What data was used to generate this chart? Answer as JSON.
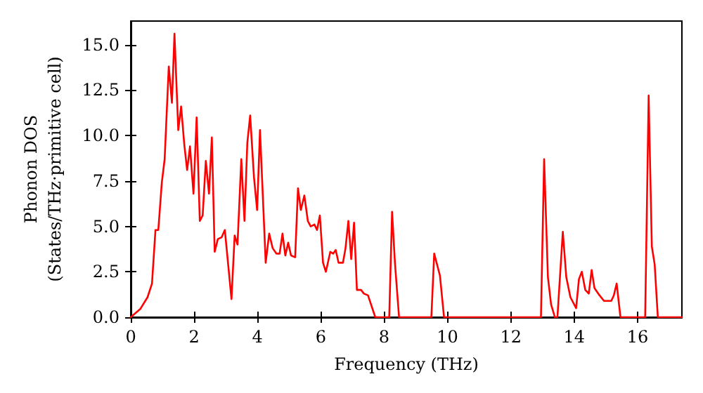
{
  "chart_data": {
    "type": "line",
    "xlabel": "Frequency (THz)",
    "ylabel": "Phonon DOS\n(States/THz·primitive cell)",
    "x": [
      0,
      0.3,
      0.53,
      0.67,
      0.78,
      0.87,
      0.98,
      1.07,
      1.2,
      1.3,
      1.38,
      1.5,
      1.59,
      1.69,
      1.78,
      1.87,
      1.98,
      2.08,
      2.18,
      2.27,
      2.37,
      2.47,
      2.56,
      2.65,
      2.75,
      2.87,
      2.97,
      3.18,
      3.28,
      3.37,
      3.49,
      3.59,
      3.68,
      3.77,
      3.89,
      3.99,
      4.08,
      4.26,
      4.37,
      4.48,
      4.6,
      4.7,
      4.79,
      4.88,
      4.97,
      5.06,
      5.19,
      5.28,
      5.37,
      5.48,
      5.59,
      5.68,
      5.8,
      5.88,
      5.97,
      6.07,
      6.16,
      6.3,
      6.39,
      6.47,
      6.56,
      6.7,
      6.78,
      6.87,
      6.96,
      7.05,
      7.14,
      7.27,
      7.36,
      7.49,
      7.72,
      8.16,
      8.25,
      8.34,
      8.47,
      9.49,
      9.58,
      9.76,
      9.89,
      12.95,
      13.05,
      13.17,
      13.27,
      13.39,
      13.47,
      13.64,
      13.75,
      13.88,
      14.06,
      14.15,
      14.24,
      14.35,
      14.46,
      14.55,
      14.64,
      14.8,
      14.94,
      15.17,
      15.25,
      15.34,
      15.46,
      16.24,
      16.35,
      16.45,
      16.54,
      16.64,
      17.4
    ],
    "series": [
      {
        "color": "#ff0000",
        "values": [
          0,
          0.45,
          1.1,
          1.85,
          4.8,
          4.8,
          7.4,
          8.7,
          13.8,
          11.8,
          15.6,
          10.3,
          11.6,
          9.5,
          8.1,
          9.4,
          6.8,
          11.0,
          5.3,
          5.6,
          8.6,
          6.8,
          9.9,
          3.6,
          4.3,
          4.4,
          4.8,
          1.0,
          4.5,
          4.0,
          8.7,
          5.3,
          9.6,
          11.1,
          7.7,
          5.9,
          10.3,
          3.0,
          4.6,
          3.8,
          3.5,
          3.5,
          4.6,
          3.4,
          4.1,
          3.4,
          3.3,
          7.1,
          5.9,
          6.7,
          5.3,
          5.0,
          5.1,
          4.8,
          5.6,
          3.0,
          2.5,
          3.6,
          3.5,
          3.7,
          3.0,
          3.0,
          3.8,
          5.3,
          3.2,
          5.2,
          1.5,
          1.5,
          1.3,
          1.2,
          0,
          0,
          5.8,
          3.0,
          0,
          0,
          3.5,
          2.3,
          0,
          0,
          8.7,
          2.2,
          0.7,
          0,
          0,
          4.7,
          2.2,
          1.1,
          0.5,
          2.1,
          2.5,
          1.5,
          1.3,
          2.6,
          1.6,
          1.2,
          0.9,
          0.9,
          1.2,
          1.85,
          0,
          0,
          12.2,
          3.9,
          2.9,
          0,
          0
        ]
      }
    ],
    "xlim": [
      0,
      17.4
    ],
    "xticks": [
      0,
      2,
      4,
      6,
      8,
      10,
      12,
      14,
      16
    ],
    "ylim": [
      0,
      16.3
    ],
    "yticks": [
      {
        "value": 0,
        "label": "0.0"
      },
      {
        "value": 2.5,
        "label": "2.5"
      },
      {
        "value": 5,
        "label": "5.0"
      },
      {
        "value": 7.5,
        "label": "7.5"
      },
      {
        "value": 10,
        "label": "10.0"
      },
      {
        "value": 12.5,
        "label": "12.5"
      },
      {
        "value": 15,
        "label": "15.0"
      }
    ],
    "grid": false,
    "marker": "none",
    "line_style": "solid"
  }
}
